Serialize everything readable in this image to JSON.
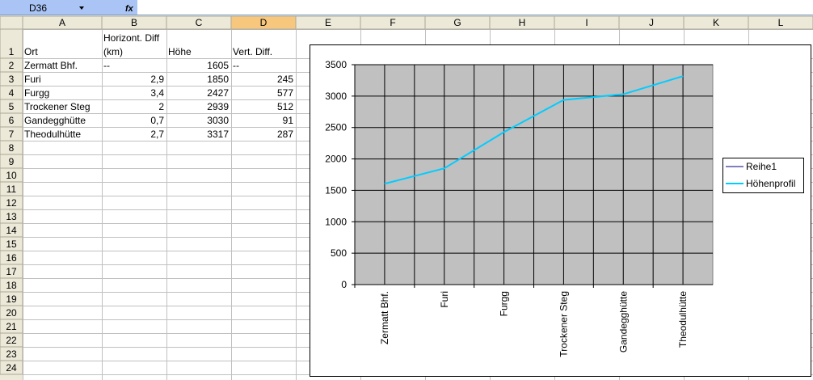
{
  "sheet": {
    "name_box": "D36",
    "fx": "fx",
    "columns": [
      "A",
      "B",
      "C",
      "D",
      "E",
      "F",
      "G",
      "H",
      "I",
      "J",
      "K",
      "L"
    ],
    "row_numbers": [
      1,
      2,
      3,
      4,
      5,
      6,
      7,
      8,
      9,
      10,
      11,
      12,
      13,
      14,
      15,
      16,
      17,
      18,
      19,
      20,
      21,
      22,
      23,
      24
    ],
    "rows": [
      [
        "Ort",
        [
          "Horizont. Diff",
          "(km)"
        ],
        "Höhe",
        "Vert. Diff."
      ],
      [
        "Zermatt Bhf.",
        "--",
        1605,
        "--"
      ],
      [
        "Furi",
        "2,9",
        1850,
        245
      ],
      [
        "Furgg",
        "3,4",
        2427,
        577
      ],
      [
        "Trockener Steg",
        "2",
        2939,
        512
      ],
      [
        "Gandegghütte",
        "0,7",
        3030,
        91
      ],
      [
        "Theodulhütte",
        "2,7",
        3317,
        287
      ]
    ]
  },
  "chart_data": {
    "type": "line",
    "categories": [
      "Zermatt Bhf.",
      "Furi",
      "Furgg",
      "Trockener Steg",
      "Gandegghütte",
      "Theodulhütte"
    ],
    "series": [
      {
        "name": "Reihe1",
        "color": "#000080",
        "values": [
          null,
          null,
          null,
          null,
          null,
          null
        ]
      },
      {
        "name": "Höhenprofil",
        "color": "#00ccff",
        "values": [
          1605,
          1850,
          2427,
          2939,
          3030,
          3317
        ]
      }
    ],
    "ylim": [
      0,
      3500
    ],
    "yticks": [
      0,
      500,
      1000,
      1500,
      2000,
      2500,
      3000,
      3500
    ],
    "grid": true,
    "legend": "right",
    "plot_color": "#c0c0c0"
  }
}
